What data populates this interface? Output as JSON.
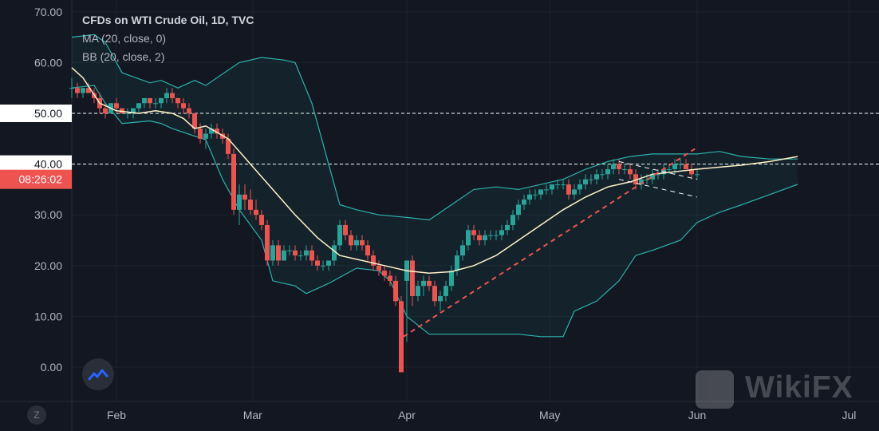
{
  "legend": {
    "title": "CFDs on WTI Crude Oil, 1D, TVC",
    "ma": "MA (20, close, 0)",
    "bb": "BB (20, close, 2)"
  },
  "time_label": "08:26:02",
  "watermark": "WikiFX",
  "scale_button": "Z",
  "colors": {
    "background": "#131722",
    "up": "#26a69a",
    "down": "#ef5350",
    "ma": "#fff3c8",
    "bb": "#2bb3ad",
    "trendline": "#ef5350",
    "guide": "#ffffff"
  },
  "chart_data": {
    "type": "candlestick",
    "title": "CFDs on WTI Crude Oil, 1D, TVC",
    "ylim": [
      -3,
      72
    ],
    "y_ticks": [
      "70.00",
      "60.00",
      "50.00",
      "40.00",
      "30.00",
      "20.00",
      "10.00",
      "0.00"
    ],
    "x_ticks": [
      "Feb",
      "Mar",
      "Apr",
      "May",
      "Jun",
      "Jul"
    ],
    "highlight_levels": [
      {
        "value": 50,
        "label": "50.00"
      },
      {
        "value": 40,
        "label": "40.00"
      }
    ],
    "price_label": {
      "value": 37.0,
      "text": "08:26:02"
    },
    "series": [
      {
        "name": "MA (20, close, 0)",
        "points": [
          [
            0,
            59
          ],
          [
            10,
            57
          ],
          [
            25,
            52
          ],
          [
            40,
            50.5
          ],
          [
            60,
            50
          ],
          [
            75,
            50.5
          ],
          [
            90,
            50
          ],
          [
            100,
            49
          ],
          [
            110,
            47
          ],
          [
            120,
            47.5
          ],
          [
            140,
            45
          ],
          [
            160,
            40
          ],
          [
            180,
            35
          ],
          [
            200,
            30
          ],
          [
            220,
            25.5
          ],
          [
            240,
            22
          ],
          [
            260,
            21
          ],
          [
            280,
            20
          ],
          [
            300,
            19
          ],
          [
            320,
            18.5
          ],
          [
            340,
            18.8
          ],
          [
            360,
            20
          ],
          [
            380,
            22
          ],
          [
            400,
            25
          ],
          [
            420,
            28
          ],
          [
            440,
            31
          ],
          [
            460,
            33.5
          ],
          [
            480,
            35.5
          ],
          [
            500,
            36.5
          ],
          [
            520,
            38
          ],
          [
            560,
            39
          ],
          [
            600,
            39.8
          ],
          [
            625,
            40.5
          ],
          [
            650,
            41.5
          ]
        ]
      },
      {
        "name": "BB upper",
        "points": [
          [
            0,
            65
          ],
          [
            20,
            65.5
          ],
          [
            30,
            64
          ],
          [
            45,
            58
          ],
          [
            70,
            56
          ],
          [
            80,
            56.5
          ],
          [
            95,
            55
          ],
          [
            110,
            56.5
          ],
          [
            120,
            55.5
          ],
          [
            150,
            60
          ],
          [
            170,
            61
          ],
          [
            190,
            60.5
          ],
          [
            200,
            60
          ],
          [
            215,
            52
          ],
          [
            240,
            32
          ],
          [
            255,
            31
          ],
          [
            275,
            30
          ],
          [
            300,
            29.5
          ],
          [
            320,
            29
          ],
          [
            340,
            32
          ],
          [
            360,
            35
          ],
          [
            380,
            35.5
          ],
          [
            400,
            35
          ],
          [
            440,
            37
          ],
          [
            460,
            39
          ],
          [
            480,
            40.5
          ],
          [
            500,
            41.5
          ],
          [
            520,
            42
          ],
          [
            540,
            42
          ],
          [
            560,
            42
          ],
          [
            580,
            42.5
          ],
          [
            600,
            41.5
          ],
          [
            625,
            41
          ],
          [
            650,
            41
          ]
        ]
      },
      {
        "name": "BB lower",
        "points": [
          [
            0,
            55
          ],
          [
            20,
            55.5
          ],
          [
            30,
            52
          ],
          [
            45,
            48
          ],
          [
            70,
            48.5
          ],
          [
            80,
            48
          ],
          [
            90,
            47
          ],
          [
            110,
            45.5
          ],
          [
            120,
            44.8
          ],
          [
            135,
            37
          ],
          [
            150,
            31
          ],
          [
            170,
            25
          ],
          [
            180,
            17
          ],
          [
            200,
            16
          ],
          [
            210,
            14.5
          ],
          [
            230,
            16.5
          ],
          [
            255,
            19.5
          ],
          [
            275,
            19
          ],
          [
            285,
            17
          ],
          [
            300,
            10
          ],
          [
            320,
            6.5
          ],
          [
            340,
            6.5
          ],
          [
            360,
            6.5
          ],
          [
            380,
            6.5
          ],
          [
            400,
            6.5
          ],
          [
            420,
            6
          ],
          [
            440,
            6
          ],
          [
            450,
            11
          ],
          [
            470,
            13
          ],
          [
            490,
            17
          ],
          [
            505,
            22
          ],
          [
            520,
            23
          ],
          [
            545,
            25
          ],
          [
            560,
            28.5
          ],
          [
            580,
            30.5
          ],
          [
            600,
            32
          ],
          [
            625,
            34
          ],
          [
            650,
            36
          ]
        ]
      },
      {
        "name": "OHLC",
        "candles": [
          [
            0,
            55,
            57,
            53,
            55
          ],
          [
            5,
            55,
            56,
            53,
            54
          ],
          [
            10,
            54,
            55,
            53,
            55
          ],
          [
            15,
            55,
            56,
            54,
            54
          ],
          [
            20,
            54,
            55,
            52,
            53
          ],
          [
            25,
            53,
            54,
            50,
            51
          ],
          [
            30,
            51,
            52,
            49,
            50
          ],
          [
            35,
            50,
            52,
            50,
            52
          ],
          [
            40,
            52,
            53,
            50,
            51
          ],
          [
            45,
            51,
            51,
            50,
            50
          ],
          [
            50,
            50,
            51,
            49,
            50
          ],
          [
            55,
            50,
            51,
            49,
            51
          ],
          [
            60,
            51,
            52,
            50,
            52
          ],
          [
            65,
            52,
            53,
            51,
            53
          ],
          [
            70,
            53,
            53,
            51,
            52
          ],
          [
            75,
            52,
            53,
            51,
            52
          ],
          [
            80,
            52,
            53,
            51,
            53
          ],
          [
            85,
            53,
            55,
            52,
            54
          ],
          [
            90,
            54,
            55,
            52,
            53
          ],
          [
            95,
            53,
            53,
            51,
            52
          ],
          [
            100,
            52,
            53,
            50,
            51
          ],
          [
            105,
            51,
            52,
            49,
            50
          ],
          [
            110,
            50,
            50,
            46,
            47
          ],
          [
            115,
            47,
            48,
            44,
            45
          ],
          [
            120,
            45,
            47,
            43,
            46
          ],
          [
            125,
            46,
            48,
            45,
            47
          ],
          [
            130,
            47,
            48,
            45,
            46
          ],
          [
            135,
            46,
            47,
            44,
            45
          ],
          [
            140,
            45,
            46,
            41,
            42
          ],
          [
            145,
            42,
            43,
            30,
            31
          ],
          [
            150,
            31,
            36,
            28,
            34
          ],
          [
            155,
            34,
            36,
            31,
            33
          ],
          [
            160,
            33,
            35,
            30,
            31
          ],
          [
            165,
            31,
            33,
            29,
            30
          ],
          [
            170,
            30,
            31,
            27,
            28
          ],
          [
            175,
            28,
            29,
            20,
            21
          ],
          [
            180,
            21,
            25,
            20,
            24
          ],
          [
            185,
            24,
            25,
            20,
            21
          ],
          [
            190,
            21,
            24,
            21,
            23
          ],
          [
            195,
            23,
            24,
            22,
            23
          ],
          [
            200,
            23,
            24,
            21,
            22
          ],
          [
            205,
            22,
            23,
            21,
            22
          ],
          [
            210,
            22,
            24,
            21,
            23
          ],
          [
            215,
            23,
            24,
            20,
            21
          ],
          [
            220,
            21,
            22,
            19,
            20
          ],
          [
            225,
            20,
            21,
            19,
            20
          ],
          [
            230,
            20,
            21,
            19,
            21
          ],
          [
            235,
            21,
            25,
            20,
            24
          ],
          [
            240,
            24,
            29,
            23,
            28
          ],
          [
            245,
            28,
            29,
            25,
            26
          ],
          [
            250,
            26,
            27,
            23,
            24
          ],
          [
            255,
            24,
            26,
            23,
            25
          ],
          [
            260,
            25,
            26,
            23,
            24
          ],
          [
            265,
            24,
            25,
            21,
            22
          ],
          [
            270,
            22,
            23,
            19,
            20
          ],
          [
            275,
            20,
            21,
            18,
            19
          ],
          [
            280,
            19,
            20,
            17,
            18
          ],
          [
            285,
            18,
            19,
            16,
            17
          ],
          [
            290,
            17,
            18,
            12,
            13
          ],
          [
            295,
            13,
            14,
            -1,
            -1
          ],
          [
            300,
            17,
            21,
            5,
            21
          ],
          [
            305,
            21,
            22,
            12,
            14
          ],
          [
            310,
            14,
            17,
            13,
            16
          ],
          [
            315,
            16,
            18,
            14,
            17
          ],
          [
            320,
            17,
            18,
            15,
            16
          ],
          [
            325,
            16,
            17,
            12,
            13
          ],
          [
            330,
            13,
            15,
            11,
            14
          ],
          [
            335,
            14,
            17,
            13,
            16
          ],
          [
            340,
            16,
            20,
            15,
            19
          ],
          [
            345,
            19,
            23,
            18,
            22
          ],
          [
            350,
            22,
            25,
            21,
            24
          ],
          [
            355,
            24,
            28,
            23,
            27
          ],
          [
            360,
            27,
            28,
            25,
            26
          ],
          [
            365,
            26,
            27,
            24,
            25
          ],
          [
            370,
            25,
            27,
            24,
            26
          ],
          [
            375,
            26,
            27,
            25,
            26
          ],
          [
            380,
            26,
            27,
            25,
            26
          ],
          [
            385,
            26,
            28,
            25,
            27
          ],
          [
            390,
            27,
            29,
            26,
            28
          ],
          [
            395,
            28,
            31,
            27,
            30
          ],
          [
            400,
            30,
            33,
            29,
            32
          ],
          [
            405,
            32,
            34,
            31,
            33
          ],
          [
            410,
            33,
            35,
            32,
            34
          ],
          [
            415,
            34,
            35,
            33,
            34
          ],
          [
            420,
            34,
            35,
            33,
            35
          ],
          [
            425,
            35,
            36,
            34,
            35
          ],
          [
            430,
            35,
            36,
            34,
            36
          ],
          [
            435,
            36,
            37,
            35,
            36
          ],
          [
            440,
            36,
            37,
            35,
            36
          ],
          [
            445,
            36,
            37,
            33,
            34
          ],
          [
            450,
            34,
            36,
            33,
            35
          ],
          [
            455,
            35,
            37,
            34,
            36
          ],
          [
            460,
            36,
            38,
            35,
            37
          ],
          [
            465,
            37,
            38,
            36,
            37
          ],
          [
            470,
            37,
            39,
            36,
            38
          ],
          [
            475,
            38,
            39,
            37,
            38
          ],
          [
            480,
            38,
            40,
            37,
            39
          ],
          [
            485,
            39,
            41,
            38,
            40
          ],
          [
            490,
            40,
            41,
            38,
            39
          ],
          [
            495,
            39,
            40,
            38,
            39
          ],
          [
            500,
            39,
            40,
            37,
            38
          ],
          [
            505,
            38,
            39,
            35,
            36
          ],
          [
            510,
            36,
            38,
            35,
            37
          ],
          [
            515,
            37,
            38,
            36,
            37
          ],
          [
            520,
            37,
            39,
            36,
            38
          ],
          [
            525,
            38,
            39,
            37,
            38
          ],
          [
            530,
            38,
            40,
            37,
            39
          ],
          [
            535,
            39,
            40,
            38,
            39
          ],
          [
            540,
            39,
            41,
            38,
            40
          ],
          [
            545,
            40,
            41,
            39,
            40
          ],
          [
            550,
            40,
            41,
            39,
            39
          ],
          [
            555,
            39,
            40,
            37,
            38
          ],
          [
            560,
            38,
            39,
            37,
            38
          ]
        ]
      }
    ],
    "trendlines": [
      {
        "style": "dashed",
        "color": "#ef5350",
        "from": [
          297,
          6
        ],
        "to": [
          558,
          43
        ]
      },
      {
        "style": "dashed",
        "color": "#ffffff",
        "from": [
          490,
          40.5
        ],
        "to": [
          560,
          37
        ]
      },
      {
        "style": "dashed",
        "color": "#ffffff",
        "from": [
          490,
          37
        ],
        "to": [
          560,
          33.5
        ]
      }
    ]
  }
}
